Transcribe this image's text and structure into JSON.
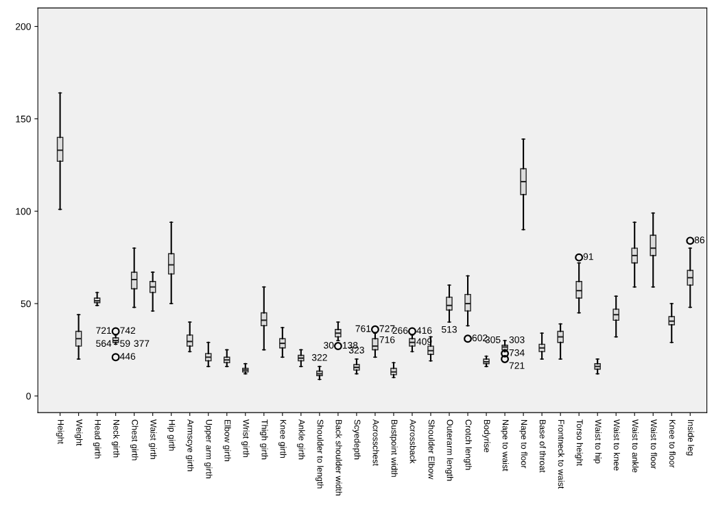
{
  "chart_data": {
    "type": "box",
    "categories": [
      "Height",
      "Weight",
      "Head girth",
      "Neck girth",
      "Chest girth",
      "Waist girth",
      "Hip girth",
      "Armscye girth",
      "Upper arm girth",
      "Elbow girth",
      "Wrist girth",
      "Thigh girth",
      "Knee girth",
      "Ankle girth",
      "Shoulder to length",
      "Back shoulder width",
      "Scyedepth",
      "Acrosschest",
      "Bustpoint width",
      "Acrossback",
      "Shoulder Elbow",
      "Outerarm length",
      "Crotch length",
      "Bodyrise",
      "Nape to waist",
      "Nape to floor",
      "Base of throat",
      "Frontneck to waist",
      "Torso height",
      "Waist to hip",
      "Waist to knee",
      "Waist to ankle",
      "Waist to floor",
      "Knee to floor",
      "Inside leg"
    ],
    "boxes": [
      {
        "low": 101,
        "q1": 127,
        "median": 133,
        "q3": 140,
        "high": 164
      },
      {
        "low": 20,
        "q1": 27,
        "median": 31,
        "q3": 35,
        "high": 44
      },
      {
        "low": 49,
        "q1": 50.5,
        "median": 51.5,
        "q3": 53,
        "high": 56
      },
      {
        "low": 28,
        "q1": 29,
        "median": 30,
        "q3": 31.5,
        "high": 33
      },
      {
        "low": 48,
        "q1": 58,
        "median": 63,
        "q3": 67,
        "high": 80
      },
      {
        "low": 46,
        "q1": 56,
        "median": 59,
        "q3": 62,
        "high": 67
      },
      {
        "low": 50,
        "q1": 66,
        "median": 71,
        "q3": 77,
        "high": 94
      },
      {
        "low": 24,
        "q1": 27,
        "median": 29.5,
        "q3": 33,
        "high": 40
      },
      {
        "low": 16,
        "q1": 19,
        "median": 21,
        "q3": 23,
        "high": 29
      },
      {
        "low": 16,
        "q1": 18,
        "median": 19.5,
        "q3": 21,
        "high": 25
      },
      {
        "low": 12,
        "q1": 13,
        "median": 14,
        "q3": 15,
        "high": 17.5
      },
      {
        "low": 25,
        "q1": 38,
        "median": 41,
        "q3": 45,
        "high": 59
      },
      {
        "low": 21,
        "q1": 26,
        "median": 28.5,
        "q3": 31,
        "high": 37
      },
      {
        "low": 16,
        "q1": 19,
        "median": 20.5,
        "q3": 22,
        "high": 25
      },
      {
        "low": 9,
        "q1": 11,
        "median": 12,
        "q3": 13.5,
        "high": 16
      },
      {
        "low": 30,
        "q1": 32,
        "median": 34,
        "q3": 36,
        "high": 40
      },
      {
        "low": 12,
        "q1": 14,
        "median": 15.5,
        "q3": 17,
        "high": 20
      },
      {
        "low": 21,
        "q1": 25,
        "median": 27,
        "q3": 31,
        "high": 34
      },
      {
        "low": 10,
        "q1": 11.5,
        "median": 13,
        "q3": 15,
        "high": 18
      },
      {
        "low": 24,
        "q1": 27,
        "median": 29,
        "q3": 31,
        "high": 33
      },
      {
        "low": 19,
        "q1": 22.5,
        "median": 24.5,
        "q3": 27,
        "high": 32
      },
      {
        "low": 40,
        "q1": 46.5,
        "median": 49,
        "q3": 53.5,
        "high": 60
      },
      {
        "low": 38,
        "q1": 46,
        "median": 50,
        "q3": 55,
        "high": 65
      },
      {
        "low": 16,
        "q1": 17.5,
        "median": 18.5,
        "q3": 20,
        "high": 21.5
      },
      {
        "low": 24,
        "q1": 25,
        "median": 26.5,
        "q3": 27.5,
        "high": 30
      },
      {
        "low": 90,
        "q1": 109,
        "median": 116,
        "q3": 123,
        "high": 139
      },
      {
        "low": 20,
        "q1": 24,
        "median": 26,
        "q3": 28,
        "high": 34
      },
      {
        "low": 20,
        "q1": 29,
        "median": 32,
        "q3": 35,
        "high": 39
      },
      {
        "low": 45,
        "q1": 53,
        "median": 57,
        "q3": 62,
        "high": 72
      },
      {
        "low": 12,
        "q1": 14.5,
        "median": 16,
        "q3": 17.5,
        "high": 20
      },
      {
        "low": 32,
        "q1": 41,
        "median": 44,
        "q3": 47,
        "high": 54
      },
      {
        "low": 59,
        "q1": 72,
        "median": 76,
        "q3": 80,
        "high": 94
      },
      {
        "low": 59,
        "q1": 76,
        "median": 80,
        "q3": 87,
        "high": 99
      },
      {
        "low": 29,
        "q1": 38.5,
        "median": 40.5,
        "q3": 43,
        "high": 50
      },
      {
        "low": 48,
        "q1": 60,
        "median": 64,
        "q3": 68,
        "high": 80
      }
    ],
    "series": [
      {
        "type": "scatter",
        "marker": "circle",
        "color": "#000000",
        "x": [
          "Neck girth",
          "Neck girth",
          "Back shoulder width",
          "Acrosschest",
          "Acrossback",
          "Crotch length",
          "Nape to waist",
          "Nape to waist",
          "Torso height",
          "Inside leg"
        ],
        "values": [
          21,
          35,
          27,
          36,
          35,
          31,
          23,
          20,
          75,
          84
        ]
      }
    ],
    "annotations": [
      {
        "text": "742",
        "x": "Neck girth",
        "y": 35
      },
      {
        "text": "721",
        "x": "Neck girth",
        "y": 35
      },
      {
        "text": "59",
        "x": "Neck girth",
        "y": 28
      },
      {
        "text": "564",
        "x": "Neck girth",
        "y": 28
      },
      {
        "text": "377",
        "x": "Neck girth",
        "y": 28
      },
      {
        "text": "446",
        "x": "Neck girth",
        "y": 21
      },
      {
        "text": "322",
        "x": "Shoulder to length",
        "y": 16
      },
      {
        "text": "138",
        "x": "Back shoulder width",
        "y": 27
      },
      {
        "text": "30",
        "x": "Back shoulder width",
        "y": 27
      },
      {
        "text": "323",
        "x": "Scyedepth",
        "y": 20
      },
      {
        "text": "727",
        "x": "Acrosschest",
        "y": 36
      },
      {
        "text": "761",
        "x": "Acrosschest",
        "y": 36
      },
      {
        "text": "716",
        "x": "Acrosschest",
        "y": 34
      },
      {
        "text": "416",
        "x": "Acrossback",
        "y": 35
      },
      {
        "text": "266",
        "x": "Acrossback",
        "y": 35
      },
      {
        "text": "409",
        "x": "Acrossback",
        "y": 33
      },
      {
        "text": "513",
        "x": "Outerarm length",
        "y": 40
      },
      {
        "text": "602",
        "x": "Crotch length",
        "y": 31
      },
      {
        "text": "303",
        "x": "Nape to waist",
        "y": 30
      },
      {
        "text": "305",
        "x": "Nape to waist",
        "y": 30
      },
      {
        "text": "734",
        "x": "Nape to waist",
        "y": 23
      },
      {
        "text": "721",
        "x": "Nape to waist",
        "y": 20
      },
      {
        "text": "91",
        "x": "Torso height",
        "y": 75
      },
      {
        "text": "86",
        "x": "Inside leg",
        "y": 84
      }
    ],
    "ylim": [
      -9,
      210
    ],
    "yticks": [
      0,
      50,
      100,
      150,
      200
    ],
    "grid": false
  }
}
